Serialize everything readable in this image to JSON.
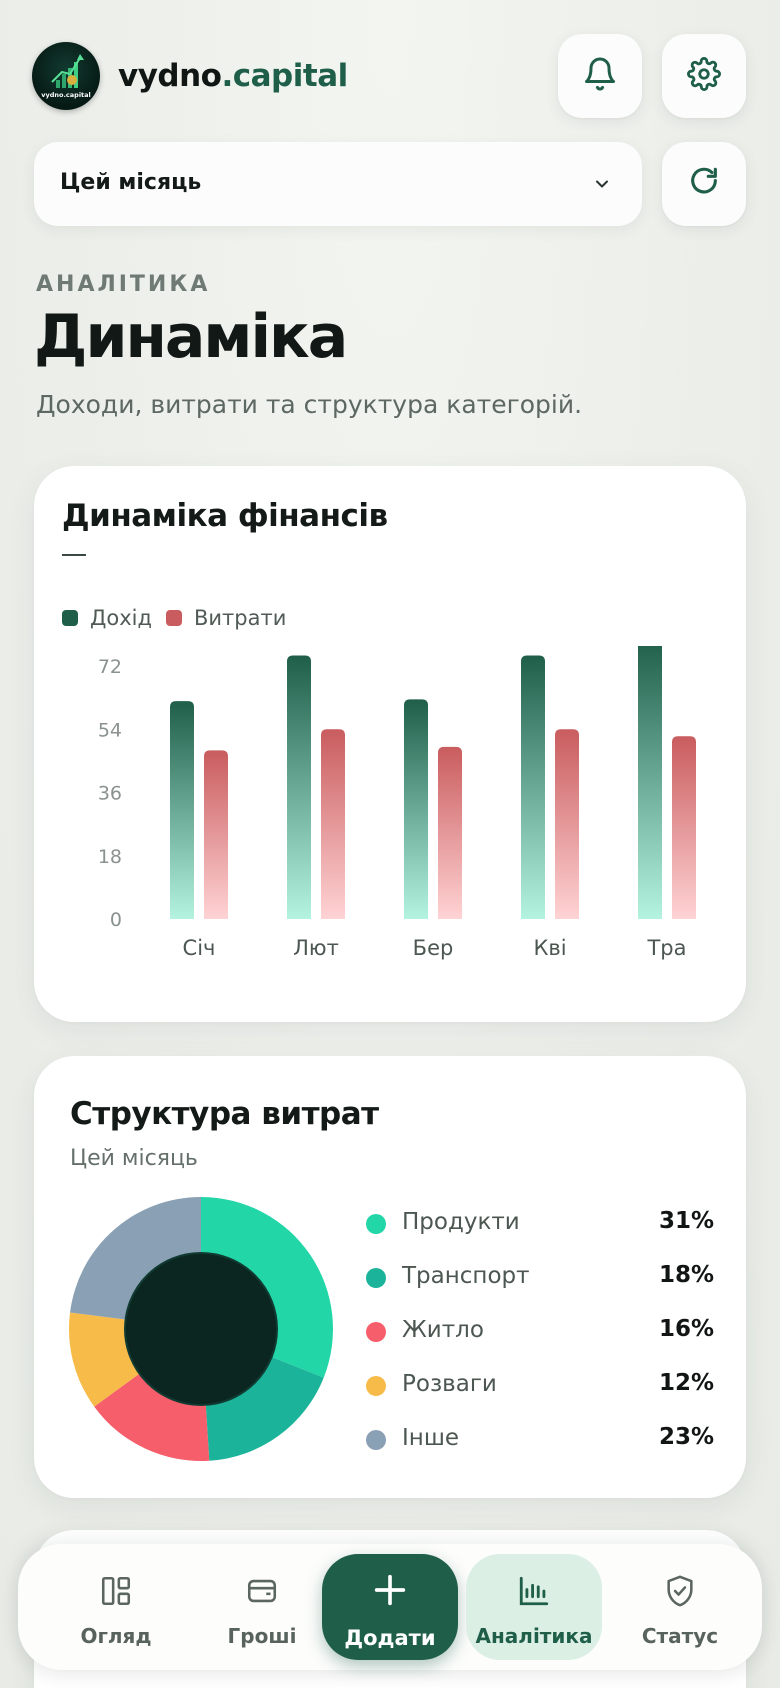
{
  "brand": {
    "name_part1": "vydno",
    "name_part2": ".capital",
    "logo_text": "vydno.capital"
  },
  "header": {
    "period_label": "Цей місяць"
  },
  "page": {
    "eyebrow": "АНАЛІТИКА",
    "title": "Динаміка",
    "subtitle": "Доходи, витрати та структура категорій."
  },
  "dynamics_card": {
    "title": "Динаміка фінансів",
    "legend": [
      {
        "label": "Дохід",
        "color": "#1f5f4a"
      },
      {
        "label": "Витрати",
        "color": "#c95c5e"
      }
    ]
  },
  "chart_data": {
    "type": "bar",
    "categories": [
      "Січ",
      "Лют",
      "Бер",
      "Кві",
      "Тра"
    ],
    "series": [
      {
        "name": "Дохід",
        "values": [
          62,
          75,
          62.5,
          75,
          80
        ],
        "color": "#1f5f4a"
      },
      {
        "name": "Витрати",
        "values": [
          48,
          54,
          49,
          54,
          52
        ],
        "color": "#c95c5e"
      }
    ],
    "yticks": [
      "72",
      "54",
      "36",
      "18",
      "0"
    ],
    "ylim": [
      0,
      72
    ],
    "grid": false,
    "legend_position": "top-left"
  },
  "structure_card": {
    "title": "Структура витрат",
    "subtitle": "Цей місяць",
    "categories": [
      {
        "name": "Продукти",
        "percent": "31%",
        "value": 31,
        "color": "#22d6a8"
      },
      {
        "name": "Транспорт",
        "percent": "18%",
        "value": 18,
        "color": "#1bb49a"
      },
      {
        "name": "Житло",
        "percent": "16%",
        "value": 16,
        "color": "#f55e6a"
      },
      {
        "name": "Розваги",
        "percent": "12%",
        "value": 12,
        "color": "#f7bb4a"
      },
      {
        "name": "Інше",
        "percent": "23%",
        "value": 23,
        "color": "#8aa0b4"
      }
    ]
  },
  "bottom_nav": {
    "items": [
      {
        "label": "Огляд",
        "icon": "dashboard-icon"
      },
      {
        "label": "Гроші",
        "icon": "wallet-icon"
      },
      {
        "label": "Додати",
        "icon": "plus-icon"
      },
      {
        "label": "Аналітика",
        "icon": "bar-chart-icon"
      },
      {
        "label": "Статус",
        "icon": "shield-check-icon"
      }
    ]
  }
}
